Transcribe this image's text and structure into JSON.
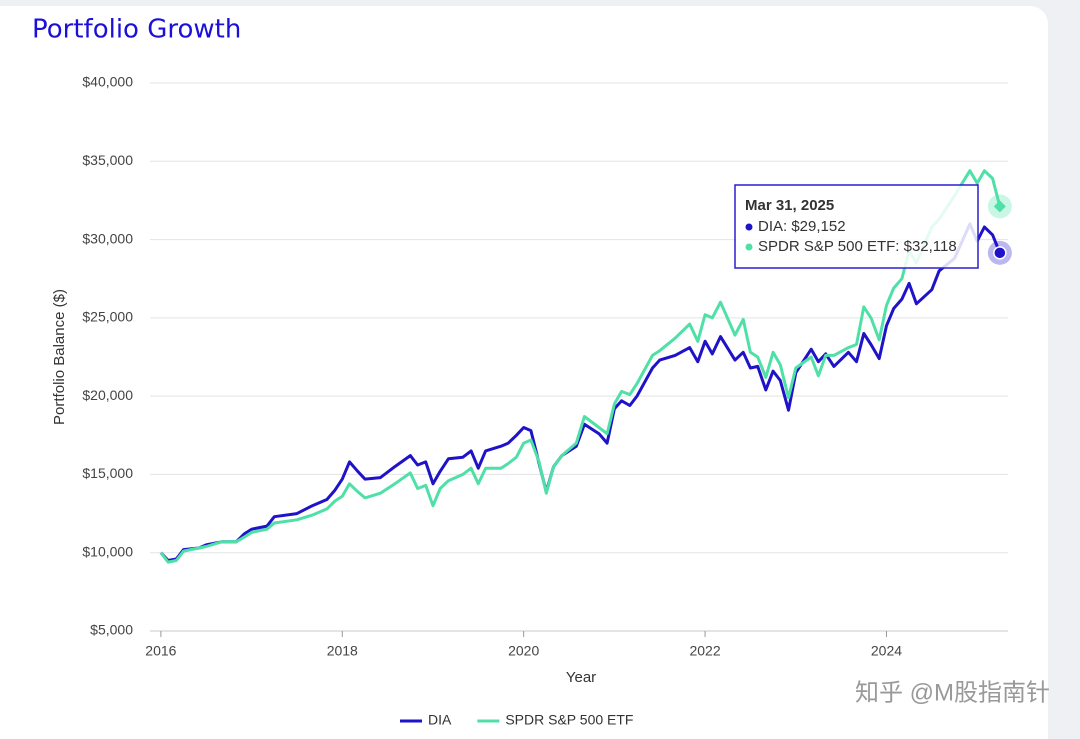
{
  "chart_data": {
    "type": "line",
    "title": "Portfolio Growth",
    "xlabel": "Year",
    "ylabel": "Portfolio Balance ($)",
    "x": [
      2016.0,
      2016.08,
      2016.17,
      2016.25,
      2016.42,
      2016.5,
      2016.67,
      2016.83,
      2016.92,
      2017.0,
      2017.17,
      2017.25,
      2017.5,
      2017.67,
      2017.83,
      2017.92,
      2018.0,
      2018.08,
      2018.17,
      2018.25,
      2018.42,
      2018.58,
      2018.75,
      2018.83,
      2018.92,
      2019.0,
      2019.08,
      2019.17,
      2019.33,
      2019.42,
      2019.5,
      2019.58,
      2019.75,
      2019.83,
      2019.92,
      2020.0,
      2020.08,
      2020.17,
      2020.25,
      2020.33,
      2020.42,
      2020.58,
      2020.67,
      2020.83,
      2020.92,
      2021.0,
      2021.08,
      2021.17,
      2021.25,
      2021.42,
      2021.5,
      2021.67,
      2021.83,
      2021.92,
      2022.0,
      2022.08,
      2022.17,
      2022.33,
      2022.42,
      2022.5,
      2022.58,
      2022.67,
      2022.75,
      2022.83,
      2022.92,
      2023.0,
      2023.17,
      2023.25,
      2023.33,
      2023.42,
      2023.58,
      2023.67,
      2023.75,
      2023.83,
      2023.92,
      2024.0,
      2024.08,
      2024.17,
      2024.25,
      2024.33,
      2024.5,
      2024.58,
      2024.75,
      2024.92,
      2025.0,
      2025.08,
      2025.17,
      2025.25
    ],
    "series": [
      {
        "name": "DIA",
        "color": "#1f12c9",
        "values": [
          10000,
          9500,
          9600,
          10200,
          10300,
          10500,
          10700,
          10700,
          11200,
          11500,
          11700,
          12300,
          12500,
          13000,
          13400,
          14000,
          14700,
          15800,
          15200,
          14700,
          14800,
          15500,
          16200,
          15600,
          15800,
          14400,
          15200,
          16000,
          16100,
          16500,
          15400,
          16500,
          16800,
          17000,
          17500,
          18000,
          17800,
          15700,
          13900,
          15500,
          16200,
          16800,
          18200,
          17600,
          17000,
          19200,
          19700,
          19400,
          20000,
          21800,
          22300,
          22600,
          23100,
          22200,
          23500,
          22700,
          23800,
          22300,
          22800,
          21800,
          21900,
          20400,
          21600,
          21000,
          19100,
          21500,
          23000,
          22200,
          22700,
          21900,
          22800,
          22200,
          24000,
          23300,
          22400,
          24500,
          25600,
          26200,
          27200,
          25900,
          26800,
          28000,
          28800,
          31000,
          29900,
          30800,
          30300,
          29152
        ]
      },
      {
        "name": "SPDR S&P 500 ETF",
        "color": "#4fe0a8",
        "values": [
          10000,
          9400,
          9500,
          10100,
          10300,
          10400,
          10700,
          10700,
          11000,
          11300,
          11500,
          11900,
          12100,
          12400,
          12800,
          13300,
          13600,
          14400,
          13900,
          13500,
          13800,
          14400,
          15100,
          14100,
          14300,
          13000,
          14100,
          14600,
          15000,
          15400,
          14400,
          15400,
          15400,
          15700,
          16100,
          17000,
          17200,
          15800,
          13800,
          15500,
          16200,
          17000,
          18700,
          18000,
          17600,
          19500,
          20300,
          20100,
          20800,
          22600,
          22900,
          23700,
          24600,
          23500,
          25200,
          25000,
          26000,
          23900,
          24900,
          22800,
          22500,
          21200,
          22800,
          22000,
          19900,
          21800,
          22500,
          21300,
          22600,
          22600,
          23100,
          23300,
          25700,
          25000,
          23600,
          25800,
          26900,
          27500,
          29300,
          28500,
          30800,
          31300,
          32800,
          34400,
          33600,
          34400,
          33900,
          32118
        ]
      }
    ],
    "xlim": [
      2015.88,
      2025.34
    ],
    "xticks": [
      2016,
      2018,
      2020,
      2022,
      2024
    ],
    "ylim": [
      5000,
      40000
    ],
    "yticks": [
      {
        "value": 5000,
        "label": "$5,000"
      },
      {
        "value": 10000,
        "label": "$10,000"
      },
      {
        "value": 15000,
        "label": "$15,000"
      },
      {
        "value": 20000,
        "label": "$20,000"
      },
      {
        "value": 25000,
        "label": "$25,000"
      },
      {
        "value": 30000,
        "label": "$30,000"
      },
      {
        "value": 35000,
        "label": "$35,000"
      },
      {
        "value": 40000,
        "label": "$40,000"
      }
    ],
    "grid": true,
    "legend": "bottom",
    "tooltip": {
      "date": "Mar 31, 2025",
      "lines": [
        {
          "label": "DIA: $29,152",
          "value": 29152
        },
        {
          "label": "SPDR S&P 500 ETF: $32,118",
          "value": 32118
        }
      ]
    },
    "watermark": "知乎 @M股指南针"
  }
}
